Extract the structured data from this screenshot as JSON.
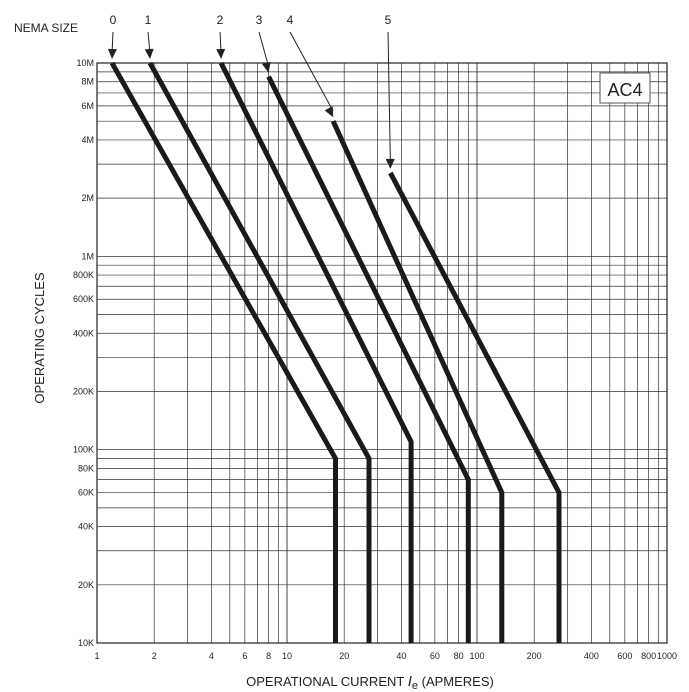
{
  "chart_data": {
    "type": "line",
    "badge": "AC4",
    "xlabel_prefix": "OPERATIONAL CURRENT ",
    "xlabel_symbol": "I",
    "xlabel_sub": "e",
    "xlabel_suffix": " (APMERES)",
    "ylabel": "OPERATING CYCLES",
    "x_scale": "log",
    "y_scale": "log",
    "xlim": [
      1,
      1000
    ],
    "ylim": [
      10000,
      10000000
    ],
    "x_ticks": [
      {
        "v": 1,
        "label": "1"
      },
      {
        "v": 2,
        "label": "2"
      },
      {
        "v": 4,
        "label": "4"
      },
      {
        "v": 6,
        "label": "6"
      },
      {
        "v": 8,
        "label": "8"
      },
      {
        "v": 10,
        "label": "10"
      },
      {
        "v": 20,
        "label": "20"
      },
      {
        "v": 40,
        "label": "40"
      },
      {
        "v": 60,
        "label": "60"
      },
      {
        "v": 80,
        "label": "80"
      },
      {
        "v": 100,
        "label": "100"
      },
      {
        "v": 200,
        "label": "200"
      },
      {
        "v": 400,
        "label": "400"
      },
      {
        "v": 600,
        "label": "600"
      },
      {
        "v": 800,
        "label": "800"
      },
      {
        "v": 1000,
        "label": "1000"
      }
    ],
    "y_ticks": [
      {
        "v": 10000,
        "label": "10K"
      },
      {
        "v": 20000,
        "label": "20K"
      },
      {
        "v": 40000,
        "label": "40K"
      },
      {
        "v": 60000,
        "label": "60K"
      },
      {
        "v": 80000,
        "label": "80K"
      },
      {
        "v": 100000,
        "label": "100K"
      },
      {
        "v": 200000,
        "label": "200K"
      },
      {
        "v": 400000,
        "label": "400K"
      },
      {
        "v": 600000,
        "label": "600K"
      },
      {
        "v": 800000,
        "label": "800K"
      },
      {
        "v": 1000000,
        "label": "1M"
      },
      {
        "v": 2000000,
        "label": "2M"
      },
      {
        "v": 4000000,
        "label": "4M"
      },
      {
        "v": 6000000,
        "label": "6M"
      },
      {
        "v": 8000000,
        "label": "8M"
      },
      {
        "v": 10000000,
        "label": "10M"
      }
    ],
    "nema_title": "NEMA SIZE",
    "series": [
      {
        "name": "0",
        "points": [
          [
            1.2,
            10000000
          ],
          [
            18,
            90000
          ],
          [
            18,
            10000
          ]
        ]
      },
      {
        "name": "1",
        "points": [
          [
            1.9,
            10000000
          ],
          [
            27,
            90000
          ],
          [
            27,
            10000
          ]
        ]
      },
      {
        "name": "2",
        "points": [
          [
            4.5,
            10000000
          ],
          [
            45,
            110000
          ],
          [
            45,
            10000
          ]
        ]
      },
      {
        "name": "3",
        "points": [
          [
            8.0,
            8500000
          ],
          [
            90,
            70000
          ],
          [
            90,
            10000
          ]
        ]
      },
      {
        "name": "4",
        "points": [
          [
            17.5,
            5000000
          ],
          [
            135,
            60000
          ],
          [
            135,
            10000
          ]
        ]
      },
      {
        "name": "5",
        "points": [
          [
            35,
            2700000
          ],
          [
            270,
            60000
          ],
          [
            270,
            10000
          ]
        ]
      }
    ]
  }
}
